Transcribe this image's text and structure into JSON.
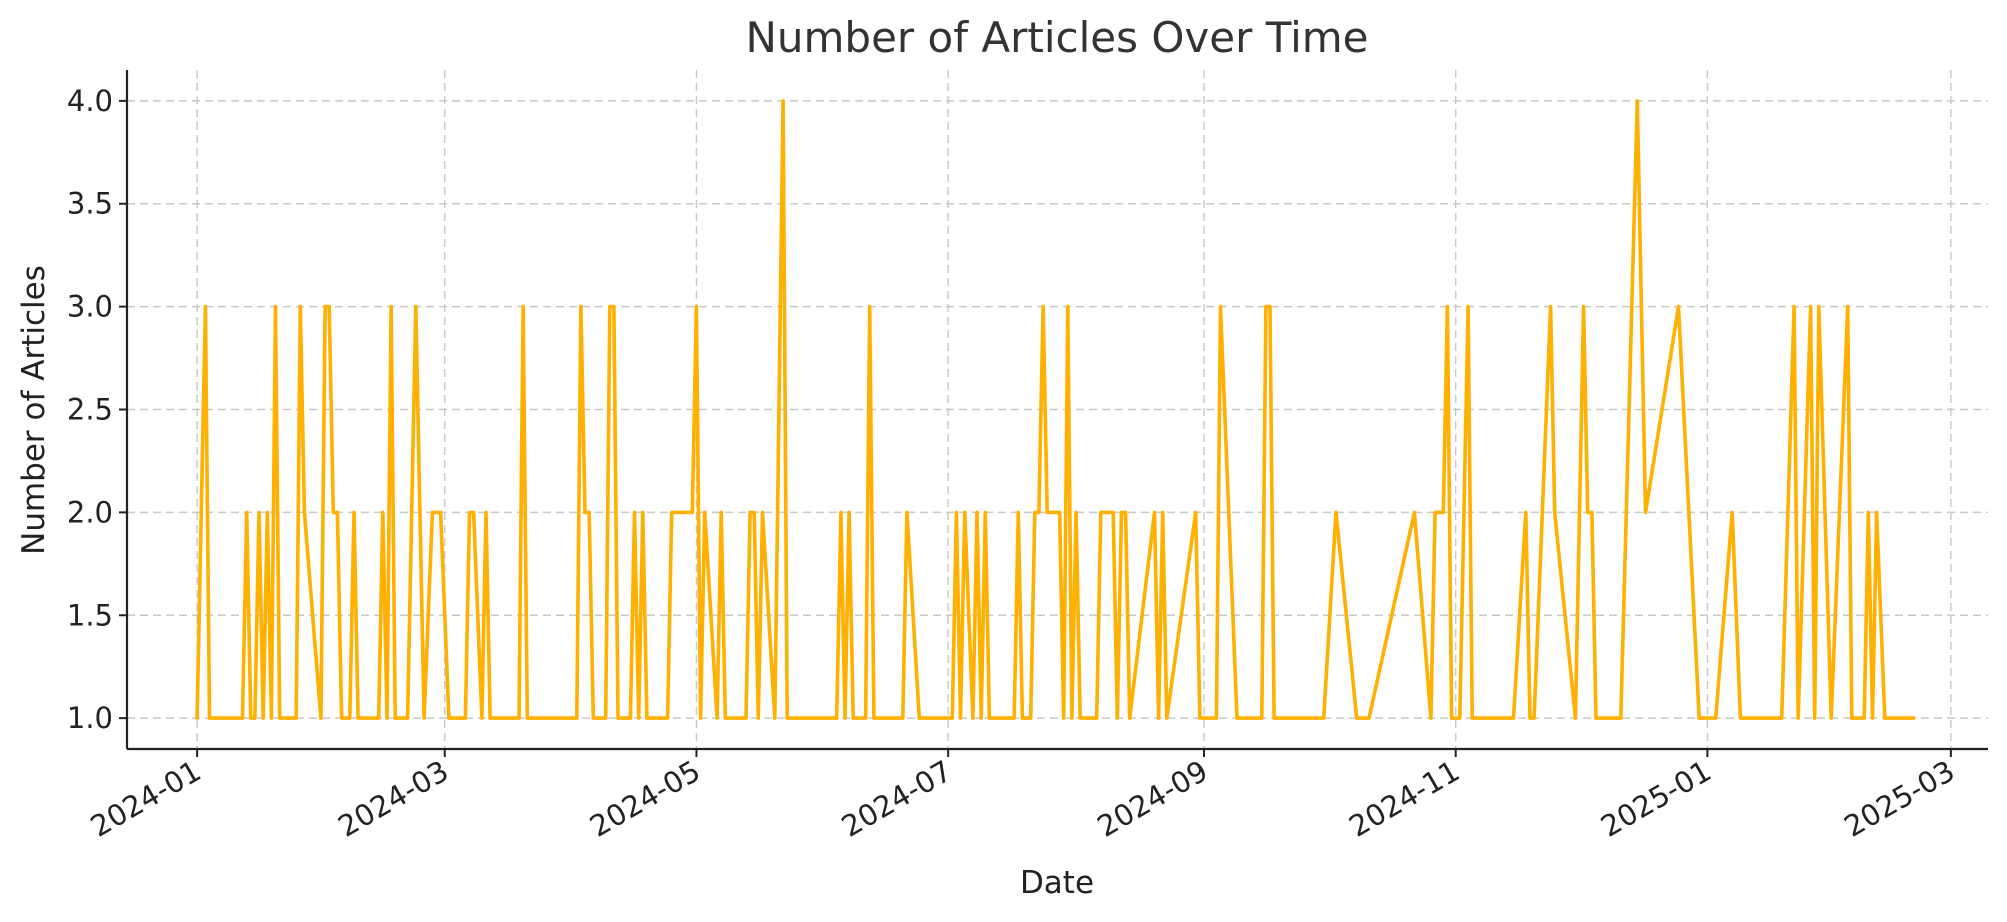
{
  "chart_data": {
    "type": "line",
    "title": "Number of Articles Over Time",
    "xlabel": "Date",
    "ylabel": "Number of Articles",
    "xlim": [
      "2023-12-15",
      "2025-03-10"
    ],
    "ylim": [
      0.85,
      4.15
    ],
    "x_ticks": [
      "2024-01-01",
      "2024-03-01",
      "2024-05-01",
      "2024-07-01",
      "2024-09-01",
      "2024-11-01",
      "2025-01-01",
      "2025-03-01"
    ],
    "x_tick_labels": [
      "2024-01",
      "2024-03",
      "2024-05",
      "2024-07",
      "2024-09",
      "2024-11",
      "2025-01",
      "2025-03"
    ],
    "y_ticks": [
      1.0,
      1.5,
      2.0,
      2.5,
      3.0,
      3.5,
      4.0
    ],
    "y_tick_labels": [
      "1.0",
      "1.5",
      "2.0",
      "2.5",
      "3.0",
      "3.5",
      "4.0"
    ],
    "grid": true,
    "colors": {
      "line": "#FFB000",
      "grid": "#c8c8c8",
      "axis": "#222222"
    },
    "series": [
      {
        "points": [
          [
            "2024-01-01",
            1
          ],
          [
            "2024-01-03",
            3
          ],
          [
            "2024-01-04",
            1
          ],
          [
            "2024-01-12",
            1
          ],
          [
            "2024-01-13",
            2
          ],
          [
            "2024-01-14",
            1
          ],
          [
            "2024-01-15",
            1
          ],
          [
            "2024-01-16",
            2
          ],
          [
            "2024-01-17",
            1
          ],
          [
            "2024-01-18",
            2
          ],
          [
            "2024-01-19",
            1
          ],
          [
            "2024-01-20",
            3
          ],
          [
            "2024-01-21",
            1
          ],
          [
            "2024-01-25",
            1
          ],
          [
            "2024-01-26",
            3
          ],
          [
            "2024-01-27",
            2
          ],
          [
            "2024-01-31",
            1
          ],
          [
            "2024-02-01",
            3
          ],
          [
            "2024-02-02",
            3
          ],
          [
            "2024-02-03",
            2
          ],
          [
            "2024-02-04",
            2
          ],
          [
            "2024-02-05",
            1
          ],
          [
            "2024-02-07",
            1
          ],
          [
            "2024-02-08",
            2
          ],
          [
            "2024-02-09",
            1
          ],
          [
            "2024-02-14",
            1
          ],
          [
            "2024-02-15",
            2
          ],
          [
            "2024-02-16",
            1
          ],
          [
            "2024-02-17",
            3
          ],
          [
            "2024-02-18",
            1
          ],
          [
            "2024-02-21",
            1
          ],
          [
            "2024-02-23",
            3
          ],
          [
            "2024-02-25",
            1
          ],
          [
            "2024-02-27",
            2
          ],
          [
            "2024-02-29",
            2
          ],
          [
            "2024-03-02",
            1
          ],
          [
            "2024-03-06",
            1
          ],
          [
            "2024-03-07",
            2
          ],
          [
            "2024-03-08",
            2
          ],
          [
            "2024-03-10",
            1
          ],
          [
            "2024-03-11",
            2
          ],
          [
            "2024-03-12",
            1
          ],
          [
            "2024-03-19",
            1
          ],
          [
            "2024-03-20",
            3
          ],
          [
            "2024-03-21",
            1
          ],
          [
            "2024-04-02",
            1
          ],
          [
            "2024-04-03",
            3
          ],
          [
            "2024-04-04",
            2
          ],
          [
            "2024-04-05",
            2
          ],
          [
            "2024-04-06",
            1
          ],
          [
            "2024-04-09",
            1
          ],
          [
            "2024-04-10",
            3
          ],
          [
            "2024-04-11",
            3
          ],
          [
            "2024-04-12",
            1
          ],
          [
            "2024-04-15",
            1
          ],
          [
            "2024-04-16",
            2
          ],
          [
            "2024-04-17",
            1
          ],
          [
            "2024-04-18",
            2
          ],
          [
            "2024-04-19",
            1
          ],
          [
            "2024-04-24",
            1
          ],
          [
            "2024-04-25",
            2
          ],
          [
            "2024-04-30",
            2
          ],
          [
            "2024-05-01",
            3
          ],
          [
            "2024-05-02",
            1
          ],
          [
            "2024-05-03",
            2
          ],
          [
            "2024-05-06",
            1
          ],
          [
            "2024-05-07",
            2
          ],
          [
            "2024-05-08",
            1
          ],
          [
            "2024-05-13",
            1
          ],
          [
            "2024-05-14",
            2
          ],
          [
            "2024-05-15",
            2
          ],
          [
            "2024-05-16",
            1
          ],
          [
            "2024-05-17",
            2
          ],
          [
            "2024-05-20",
            1
          ],
          [
            "2024-05-22",
            4
          ],
          [
            "2024-05-23",
            1
          ],
          [
            "2024-06-04",
            1
          ],
          [
            "2024-06-05",
            2
          ],
          [
            "2024-06-06",
            1
          ],
          [
            "2024-06-07",
            2
          ],
          [
            "2024-06-08",
            1
          ],
          [
            "2024-06-11",
            1
          ],
          [
            "2024-06-12",
            3
          ],
          [
            "2024-06-13",
            1
          ],
          [
            "2024-06-20",
            1
          ],
          [
            "2024-06-21",
            2
          ],
          [
            "2024-06-24",
            1
          ],
          [
            "2024-07-02",
            1
          ],
          [
            "2024-07-03",
            2
          ],
          [
            "2024-07-04",
            1
          ],
          [
            "2024-07-05",
            2
          ],
          [
            "2024-07-07",
            1
          ],
          [
            "2024-07-08",
            2
          ],
          [
            "2024-07-09",
            1
          ],
          [
            "2024-07-10",
            2
          ],
          [
            "2024-07-11",
            1
          ],
          [
            "2024-07-17",
            1
          ],
          [
            "2024-07-18",
            2
          ],
          [
            "2024-07-19",
            1
          ],
          [
            "2024-07-21",
            1
          ],
          [
            "2024-07-22",
            2
          ],
          [
            "2024-07-23",
            2
          ],
          [
            "2024-07-24",
            3
          ],
          [
            "2024-07-25",
            2
          ],
          [
            "2024-07-28",
            2
          ],
          [
            "2024-07-29",
            1
          ],
          [
            "2024-07-30",
            3
          ],
          [
            "2024-07-31",
            1
          ],
          [
            "2024-08-01",
            2
          ],
          [
            "2024-08-02",
            1
          ],
          [
            "2024-08-06",
            1
          ],
          [
            "2024-08-07",
            2
          ],
          [
            "2024-08-10",
            2
          ],
          [
            "2024-08-11",
            1
          ],
          [
            "2024-08-12",
            2
          ],
          [
            "2024-08-13",
            2
          ],
          [
            "2024-08-14",
            1
          ],
          [
            "2024-08-20",
            2
          ],
          [
            "2024-08-21",
            1
          ],
          [
            "2024-08-22",
            2
          ],
          [
            "2024-08-23",
            1
          ],
          [
            "2024-08-30",
            2
          ],
          [
            "2024-08-31",
            1
          ],
          [
            "2024-09-04",
            1
          ],
          [
            "2024-09-05",
            3
          ],
          [
            "2024-09-09",
            1
          ],
          [
            "2024-09-15",
            1
          ],
          [
            "2024-09-16",
            3
          ],
          [
            "2024-09-17",
            3
          ],
          [
            "2024-09-18",
            1
          ],
          [
            "2024-09-30",
            1
          ],
          [
            "2024-10-03",
            2
          ],
          [
            "2024-10-08",
            1
          ],
          [
            "2024-10-11",
            1
          ],
          [
            "2024-10-22",
            2
          ],
          [
            "2024-10-26",
            1
          ],
          [
            "2024-10-27",
            2
          ],
          [
            "2024-10-29",
            2
          ],
          [
            "2024-10-30",
            3
          ],
          [
            "2024-10-31",
            1
          ],
          [
            "2024-11-02",
            1
          ],
          [
            "2024-11-04",
            3
          ],
          [
            "2024-11-05",
            1
          ],
          [
            "2024-11-15",
            1
          ],
          [
            "2024-11-18",
            2
          ],
          [
            "2024-11-19",
            1
          ],
          [
            "2024-11-20",
            1
          ],
          [
            "2024-11-24",
            3
          ],
          [
            "2024-11-25",
            2
          ],
          [
            "2024-11-30",
            1
          ],
          [
            "2024-12-02",
            3
          ],
          [
            "2024-12-03",
            2
          ],
          [
            "2024-12-04",
            2
          ],
          [
            "2024-12-05",
            1
          ],
          [
            "2024-12-11",
            1
          ],
          [
            "2024-12-15",
            4
          ],
          [
            "2024-12-17",
            2
          ],
          [
            "2024-12-25",
            3
          ],
          [
            "2024-12-30",
            1
          ],
          [
            "2025-01-03",
            1
          ],
          [
            "2025-01-07",
            2
          ],
          [
            "2025-01-09",
            1
          ],
          [
            "2025-01-19",
            1
          ],
          [
            "2025-01-22",
            3
          ],
          [
            "2025-01-23",
            1
          ],
          [
            "2025-01-26",
            3
          ],
          [
            "2025-01-27",
            1
          ],
          [
            "2025-01-28",
            3
          ],
          [
            "2025-01-31",
            1
          ],
          [
            "2025-02-04",
            3
          ],
          [
            "2025-02-05",
            1
          ],
          [
            "2025-02-08",
            1
          ],
          [
            "2025-02-09",
            2
          ],
          [
            "2025-02-10",
            1
          ],
          [
            "2025-02-11",
            2
          ],
          [
            "2025-02-13",
            1
          ],
          [
            "2025-02-20",
            1
          ]
        ]
      }
    ]
  }
}
